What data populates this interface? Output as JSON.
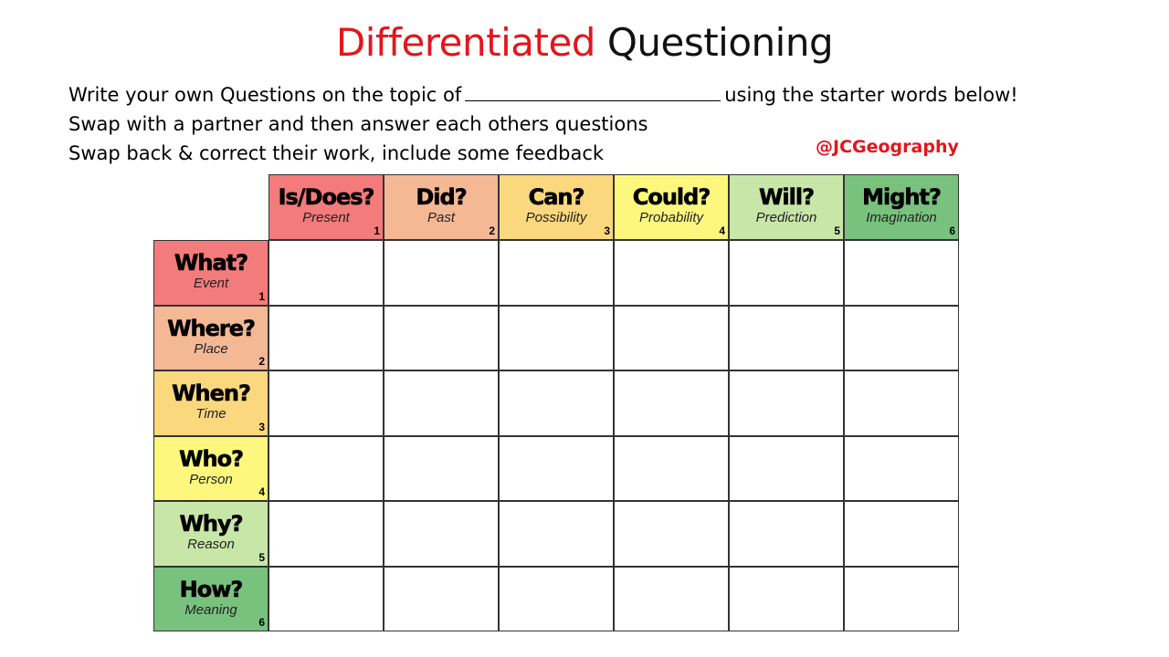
{
  "title": {
    "part1": "Differentiated",
    "part2": "Questioning"
  },
  "instructions": {
    "line1_before": "Write your own Questions on the topic of",
    "line1_after": "using the starter words below!",
    "line2": "Swap with a partner and then answer each others questions",
    "line3": "Swap back & correct their work, include some feedback"
  },
  "handle": "@JCGeography",
  "colors": {
    "c1": "#f37b7b",
    "c2": "#f5b895",
    "c3": "#fbd77e",
    "c4": "#fdf87d",
    "c5": "#c8e6a8",
    "c6": "#79c27e",
    "accent": "#e3161b"
  },
  "columns": [
    {
      "word": "Is/Does?",
      "sub": "Present",
      "num": "1"
    },
    {
      "word": "Did?",
      "sub": "Past",
      "num": "2"
    },
    {
      "word": "Can?",
      "sub": "Possibility",
      "num": "3"
    },
    {
      "word": "Could?",
      "sub": "Probability",
      "num": "4"
    },
    {
      "word": "Will?",
      "sub": "Prediction",
      "num": "5"
    },
    {
      "word": "Might?",
      "sub": "Imagination",
      "num": "6"
    }
  ],
  "rows": [
    {
      "word": "What?",
      "sub": "Event",
      "num": "1"
    },
    {
      "word": "Where?",
      "sub": "Place",
      "num": "2"
    },
    {
      "word": "When?",
      "sub": "Time",
      "num": "3"
    },
    {
      "word": "Who?",
      "sub": "Person",
      "num": "4"
    },
    {
      "word": "Why?",
      "sub": "Reason",
      "num": "5"
    },
    {
      "word": "How?",
      "sub": "Meaning",
      "num": "6"
    }
  ]
}
